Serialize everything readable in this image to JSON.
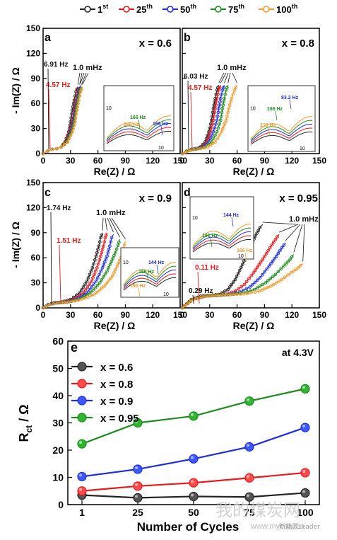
{
  "legend": {
    "items": [
      {
        "label": "1",
        "sup": "st",
        "color": "#222222"
      },
      {
        "label": "25",
        "sup": "th",
        "color": "#e8191c"
      },
      {
        "label": "50",
        "sup": "th",
        "color": "#1f2fd6"
      },
      {
        "label": "75",
        "sup": "th",
        "color": "#1f8a1f"
      },
      {
        "label": "100",
        "sup": "th",
        "color": "#f29a2e"
      }
    ]
  },
  "eis": {
    "xlabel": "Re(Z) / Ω",
    "ylabel": "- Im(Z) / Ω",
    "xlim": [
      0,
      150
    ],
    "ylim": [
      0,
      150
    ],
    "xticks": [
      0,
      30,
      60,
      90,
      120,
      150
    ],
    "yticks": [
      0,
      30,
      60,
      90,
      120,
      150
    ],
    "inset_xtick": "10",
    "inset_ytick": "10",
    "low_freq_label": "1.0 mHz"
  },
  "chart_data": [
    {
      "type": "line",
      "panel": "a",
      "title": "x = 0.6",
      "series": [
        {
          "name": "1st",
          "x": [
            0,
            5,
            10,
            15,
            20,
            24,
            28,
            30,
            32,
            34,
            36,
            38
          ],
          "y": [
            0,
            3,
            5,
            6,
            8,
            14,
            26,
            38,
            52,
            64,
            74,
            80
          ]
        },
        {
          "name": "25th",
          "x": [
            0,
            5,
            10,
            15,
            20,
            25,
            29,
            32,
            34,
            36,
            38,
            40
          ],
          "y": [
            0,
            3,
            5,
            6,
            8,
            14,
            26,
            38,
            52,
            64,
            74,
            80
          ]
        },
        {
          "name": "50th",
          "x": [
            0,
            5,
            10,
            15,
            20,
            26,
            30,
            33,
            35,
            37,
            39,
            41
          ],
          "y": [
            0,
            3,
            5,
            6,
            8,
            14,
            26,
            38,
            52,
            64,
            74,
            82
          ]
        },
        {
          "name": "75th",
          "x": [
            0,
            5,
            10,
            15,
            20,
            26,
            31,
            34,
            36,
            38,
            40,
            42
          ],
          "y": [
            0,
            3,
            5,
            6,
            8,
            14,
            26,
            38,
            52,
            64,
            74,
            80
          ]
        },
        {
          "name": "100th",
          "x": [
            0,
            5,
            10,
            15,
            20,
            27,
            32,
            35,
            37,
            39,
            41,
            43
          ],
          "y": [
            0,
            3,
            5,
            6,
            8,
            14,
            26,
            38,
            52,
            64,
            74,
            80
          ]
        }
      ],
      "annotations": [
        {
          "text": "6.91 Hz",
          "color": "black"
        },
        {
          "text": "4.57 Hz",
          "color": "red"
        },
        {
          "text": "1.0 mHz",
          "color": "black"
        }
      ],
      "inset_labels": [
        {
          "text": "166 Hz",
          "color": "green"
        },
        {
          "text": "166 Hz",
          "color": "orange"
        },
        {
          "text": "166 Hz",
          "color": "blue"
        }
      ]
    },
    {
      "type": "line",
      "panel": "b",
      "title": "x = 0.8",
      "series": [
        {
          "name": "1st",
          "x": [
            0,
            5,
            10,
            15,
            20,
            25,
            29,
            32,
            34,
            36,
            38,
            40
          ],
          "y": [
            0,
            3,
            5,
            6,
            8,
            14,
            26,
            40,
            54,
            66,
            76,
            82
          ]
        },
        {
          "name": "25th",
          "x": [
            0,
            5,
            10,
            15,
            21,
            27,
            31,
            34,
            36,
            38,
            40,
            42
          ],
          "y": [
            0,
            3,
            5,
            6,
            8,
            14,
            26,
            40,
            54,
            66,
            76,
            82
          ]
        },
        {
          "name": "50th",
          "x": [
            0,
            5,
            10,
            16,
            23,
            29,
            34,
            38,
            40,
            42,
            44,
            46
          ],
          "y": [
            0,
            3,
            5,
            6,
            8,
            14,
            26,
            40,
            54,
            66,
            76,
            82
          ]
        },
        {
          "name": "75th",
          "x": [
            0,
            5,
            11,
            18,
            25,
            32,
            38,
            42,
            44,
            46,
            48,
            50
          ],
          "y": [
            0,
            3,
            5,
            6,
            8,
            14,
            26,
            40,
            54,
            66,
            76,
            82
          ]
        },
        {
          "name": "100th",
          "x": [
            0,
            6,
            12,
            20,
            28,
            36,
            43,
            48,
            51,
            54,
            57,
            60
          ],
          "y": [
            0,
            3,
            5,
            6,
            8,
            14,
            26,
            40,
            54,
            66,
            76,
            82
          ]
        }
      ],
      "annotations": [
        {
          "text": "6.03 Hz",
          "color": "black"
        },
        {
          "text": "4.57 Hz",
          "color": "red"
        },
        {
          "text": "1.0 mHz",
          "color": "black"
        }
      ],
      "inset_labels": [
        {
          "text": "83.2 Hz",
          "color": "blue"
        },
        {
          "text": "166 Hz",
          "color": "green"
        },
        {
          "text": "219 Hz",
          "color": "orange"
        }
      ]
    },
    {
      "type": "line",
      "panel": "c",
      "title": "x = 0.9",
      "series": [
        {
          "name": "1st",
          "x": [
            0,
            6,
            12,
            20,
            30,
            40,
            48,
            54,
            58,
            61,
            63,
            65
          ],
          "y": [
            0,
            4,
            6,
            7,
            10,
            18,
            32,
            48,
            62,
            74,
            84,
            90
          ]
        },
        {
          "name": "25th",
          "x": [
            0,
            6,
            13,
            22,
            33,
            44,
            53,
            59,
            63,
            66,
            68,
            70
          ],
          "y": [
            0,
            4,
            6,
            7,
            10,
            18,
            32,
            48,
            62,
            74,
            84,
            90
          ]
        },
        {
          "name": "50th",
          "x": [
            0,
            6,
            14,
            24,
            36,
            48,
            58,
            65,
            70,
            73,
            75,
            77
          ],
          "y": [
            0,
            4,
            6,
            7,
            10,
            18,
            32,
            48,
            62,
            74,
            84,
            88
          ]
        },
        {
          "name": "75th",
          "x": [
            0,
            7,
            15,
            26,
            39,
            52,
            62,
            70,
            75,
            79,
            82,
            84
          ],
          "y": [
            0,
            4,
            6,
            7,
            10,
            18,
            30,
            44,
            56,
            66,
            75,
            82
          ]
        },
        {
          "name": "100th",
          "x": [
            0,
            7,
            16,
            28,
            42,
            56,
            67,
            76,
            81,
            85,
            88,
            90
          ],
          "y": [
            0,
            4,
            6,
            7,
            10,
            16,
            26,
            38,
            50,
            60,
            70,
            80
          ]
        }
      ],
      "annotations": [
        {
          "text": "1.74 Hz",
          "color": "black"
        },
        {
          "text": "1.51 Hz",
          "color": "red"
        },
        {
          "text": "1.0 mHz",
          "color": "black"
        }
      ],
      "inset_labels": [
        {
          "text": "144 Hz",
          "color": "blue"
        },
        {
          "text": "166 Hz",
          "color": "green"
        },
        {
          "text": "190 Hz",
          "color": "orange"
        }
      ]
    },
    {
      "type": "line",
      "panel": "d",
      "title": "x = 0.95",
      "series": [
        {
          "name": "1st",
          "x": [
            0,
            10,
            20,
            30,
            40,
            50,
            58,
            66,
            74,
            80,
            85,
            88
          ],
          "y": [
            0,
            10,
            14,
            15,
            16,
            22,
            34,
            52,
            72,
            86,
            96,
            100
          ]
        },
        {
          "name": "25th",
          "x": [
            0,
            10,
            22,
            34,
            46,
            58,
            68,
            78,
            88,
            96,
            102,
            106
          ],
          "y": [
            0,
            10,
            14,
            15,
            16,
            20,
            28,
            42,
            58,
            72,
            82,
            88
          ]
        },
        {
          "name": "50th",
          "x": [
            0,
            11,
            24,
            37,
            50,
            63,
            74,
            85,
            95,
            103,
            109,
            113
          ],
          "y": [
            0,
            10,
            14,
            15,
            16,
            19,
            25,
            36,
            50,
            62,
            72,
            78
          ]
        },
        {
          "name": "75th",
          "x": [
            0,
            11,
            25,
            39,
            53,
            67,
            79,
            91,
            102,
            111,
            118,
            122
          ],
          "y": [
            0,
            10,
            14,
            15,
            16,
            18,
            22,
            30,
            40,
            50,
            58,
            64
          ]
        },
        {
          "name": "100th",
          "x": [
            0,
            12,
            26,
            41,
            56,
            71,
            84,
            97,
            109,
            119,
            127,
            132
          ],
          "y": [
            0,
            10,
            14,
            15,
            16,
            17,
            20,
            26,
            34,
            42,
            48,
            53
          ]
        }
      ],
      "annotations": [
        {
          "text": "0.29 Hz",
          "color": "black"
        },
        {
          "text": "0.11 Hz",
          "color": "red"
        },
        {
          "text": "1.0 mHz",
          "color": "black"
        }
      ],
      "inset_labels": [
        {
          "text": "144 Hz",
          "color": "blue"
        },
        {
          "text": "191 Hz",
          "color": "green"
        },
        {
          "text": "166 Hz",
          "color": "orange"
        }
      ]
    },
    {
      "type": "line",
      "panel": "e",
      "title": "at 4.3V",
      "xlabel": "Number of Cycles",
      "ylabel": "R",
      "ylabel_sub": "ct",
      "ylabel_unit": " / Ω",
      "categories": [
        "1",
        "25",
        "50",
        "75",
        "100"
      ],
      "ylim": [
        0,
        60
      ],
      "yticks": [
        0,
        10,
        20,
        30,
        40,
        50,
        60
      ],
      "series": [
        {
          "name": "x = 0.6",
          "color": "#222222",
          "fill": "#555555",
          "values": [
            3.5,
            2.5,
            3.0,
            2.8,
            4.3
          ]
        },
        {
          "name": "x = 0.8",
          "color": "#e8191c",
          "fill": "#ff4b4b",
          "values": [
            5.0,
            6.8,
            8.0,
            9.8,
            11.7
          ]
        },
        {
          "name": "x = 0.9",
          "color": "#1f2fd6",
          "fill": "#3e57ff",
          "values": [
            10.3,
            13.0,
            16.8,
            21.2,
            28.3
          ]
        },
        {
          "name": "x = 0.95",
          "color": "#1f8a1f",
          "fill": "#2fb52f",
          "values": [
            22.3,
            30.0,
            32.5,
            38.0,
            42.5
          ]
        }
      ]
    }
  ],
  "watermark": {
    "text": "我的煤炭网",
    "url": "www.mycoal.cn",
    "sub": "新能源Leader"
  }
}
